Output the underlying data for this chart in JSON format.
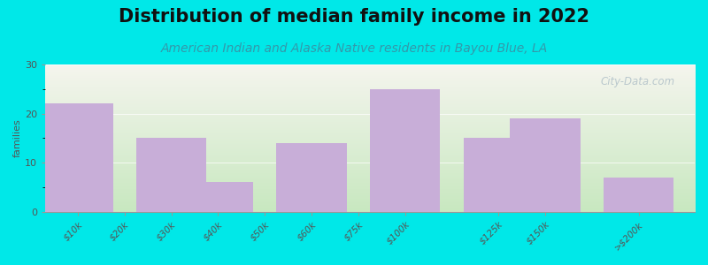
{
  "title": "Distribution of median family income in 2022",
  "subtitle": "American Indian and Alaska Native residents in Bayou Blue, LA",
  "categories": [
    "$10k",
    "$20k",
    "$30k",
    "$40k",
    "$50k",
    "$60k",
    "$75k",
    "$100k",
    "$125k",
    "$150k",
    ">$200k"
  ],
  "values": [
    22,
    15,
    6,
    14,
    25,
    15,
    19,
    7
  ],
  "bar_positions": [
    0,
    2,
    3,
    5,
    7,
    9,
    10,
    12
  ],
  "tick_positions": [
    0,
    1,
    2,
    3,
    4,
    5,
    6,
    7,
    9,
    10,
    12
  ],
  "bar_color": "#c8aed8",
  "background_color": "#00e8e8",
  "grad_bottom": "#c8e8c0",
  "grad_top": "#f5f5ee",
  "ylabel": "families",
  "ylim": [
    0,
    30
  ],
  "yticks": [
    0,
    10,
    20,
    30
  ],
  "title_fontsize": 15,
  "subtitle_fontsize": 10,
  "watermark": "City-Data.com",
  "watermark_color": "#b0c0c8"
}
